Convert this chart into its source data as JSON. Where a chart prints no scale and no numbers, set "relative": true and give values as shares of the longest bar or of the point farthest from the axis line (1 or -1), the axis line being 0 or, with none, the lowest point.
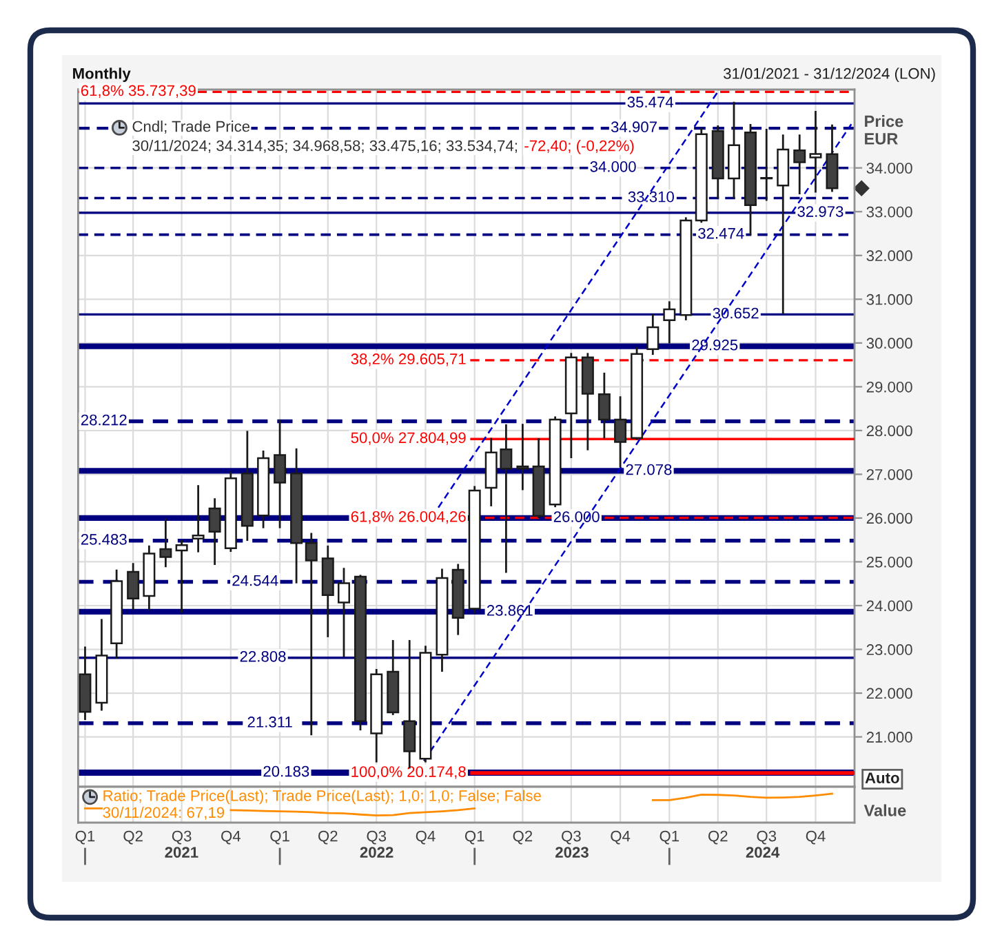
{
  "chart_data": [
    {
      "type": "candlestick",
      "title": "Monthly",
      "subtitle": "31/01/2021 - 31/12/2024 (LON)",
      "ylabel": "Price\nEUR",
      "x": [
        "2021-01",
        "2021-02",
        "2021-03",
        "2021-04",
        "2021-05",
        "2021-06",
        "2021-07",
        "2021-08",
        "2021-09",
        "2021-10",
        "2021-11",
        "2021-12",
        "2022-01",
        "2022-02",
        "2022-03",
        "2022-04",
        "2022-05",
        "2022-06",
        "2022-07",
        "2022-08",
        "2022-09",
        "2022-10",
        "2022-11",
        "2022-12",
        "2023-01",
        "2023-02",
        "2023-03",
        "2023-04",
        "2023-05",
        "2023-06",
        "2023-07",
        "2023-08",
        "2023-09",
        "2023-10",
        "2023-11",
        "2023-12",
        "2024-01",
        "2024-02",
        "2024-03",
        "2024-04",
        "2024-05",
        "2024-06",
        "2024-07",
        "2024-08",
        "2024-09",
        "2024-10",
        "2024-11"
      ],
      "ohlc": [
        [
          22430,
          23040,
          21410,
          21570
        ],
        [
          21780,
          23670,
          21620,
          22860
        ],
        [
          23140,
          24800,
          22810,
          24560
        ],
        [
          24770,
          24950,
          23930,
          24160
        ],
        [
          24220,
          25350,
          23910,
          25190
        ],
        [
          25290,
          25970,
          24900,
          25110
        ],
        [
          25260,
          25470,
          23860,
          25380
        ],
        [
          25530,
          26730,
          25240,
          25600
        ],
        [
          26220,
          26430,
          24950,
          25690
        ],
        [
          25310,
          27040,
          25250,
          26910
        ],
        [
          27020,
          27970,
          25500,
          25820
        ],
        [
          26060,
          27520,
          25790,
          27370
        ],
        [
          27440,
          28230,
          25790,
          26810
        ],
        [
          27020,
          27570,
          24530,
          25430
        ],
        [
          25430,
          25640,
          21060,
          25030
        ],
        [
          25080,
          25350,
          23300,
          24240
        ],
        [
          24070,
          24840,
          22850,
          24510
        ],
        [
          24660,
          24680,
          21170,
          21360
        ],
        [
          21080,
          22530,
          20440,
          22430
        ],
        [
          22490,
          23190,
          21520,
          21560
        ],
        [
          21360,
          23190,
          20300,
          20670
        ],
        [
          20500,
          23060,
          20440,
          22920
        ],
        [
          22880,
          24820,
          22510,
          24630
        ],
        [
          24820,
          24930,
          23350,
          23720
        ],
        [
          23930,
          26710,
          23830,
          26630
        ],
        [
          26690,
          27810,
          26290,
          27500
        ],
        [
          27570,
          28120,
          24770,
          27130
        ],
        [
          27180,
          28130,
          26660,
          27130
        ],
        [
          27180,
          27800,
          26020,
          26050
        ],
        [
          26310,
          28300,
          26270,
          28250
        ],
        [
          28390,
          29750,
          27390,
          29670
        ],
        [
          29670,
          29750,
          27570,
          28840
        ],
        [
          28830,
          29300,
          27840,
          28250
        ],
        [
          28250,
          28760,
          27180,
          27740
        ],
        [
          27830,
          29890,
          27810,
          29750
        ],
        [
          29860,
          30640,
          29750,
          30360
        ],
        [
          30520,
          30930,
          30010,
          30770
        ],
        [
          30640,
          32850,
          30540,
          32800
        ],
        [
          32800,
          34890,
          32770,
          34770
        ],
        [
          34840,
          34950,
          33320,
          33760
        ],
        [
          33760,
          35490,
          33320,
          34520
        ],
        [
          34810,
          34980,
          32480,
          33150
        ],
        [
          33760,
          34870,
          33270,
          33770
        ],
        [
          33600,
          34740,
          30680,
          34420
        ],
        [
          34400,
          34740,
          33420,
          34130
        ],
        [
          34240,
          35280,
          33460,
          34320
        ],
        [
          34314.35,
          34968.58,
          33475.16,
          33534.74
        ]
      ],
      "series": [
        {
          "type": "line",
          "color": "#0000cd",
          "line_style": "dashed",
          "x": [
            "2022-09-28",
            "2024-12-07"
          ],
          "values": [
            20450,
            35000
          ]
        },
        {
          "type": "line",
          "color": "#0000cd",
          "line_style": "dashed",
          "x": [
            "2022-10-25",
            "2024-04-03"
          ],
          "values": [
            26240,
            35780
          ]
        }
      ],
      "ref_lines": [
        {
          "axis": "y",
          "value": 35737.39,
          "label": "61,8% 35.737,39",
          "color": "#ff0000",
          "line_style": "dashed"
        },
        {
          "axis": "y",
          "value": 35474,
          "label": "35.474",
          "color": "#000080",
          "line_style": "solid"
        },
        {
          "axis": "y",
          "value": 34907,
          "label": "34.907",
          "color": "#000080",
          "line_style": "dashed"
        },
        {
          "axis": "y",
          "value": 34000,
          "label": "34.000",
          "color": "#000080",
          "line_style": "dashed"
        },
        {
          "axis": "y",
          "value": 33310,
          "label": "33.310",
          "color": "#000080",
          "line_style": "dashed"
        },
        {
          "axis": "y",
          "value": 32973,
          "label": "32.973",
          "color": "#000080",
          "line_style": "solid"
        },
        {
          "axis": "y",
          "value": 32474,
          "label": "32.474",
          "color": "#000080",
          "line_style": "dashed"
        },
        {
          "axis": "y",
          "value": 30652,
          "label": "30.652",
          "color": "#000080",
          "line_style": "solid"
        },
        {
          "axis": "y",
          "value": 29925,
          "label": "29.925",
          "color": "#000080",
          "line_style": "solid"
        },
        {
          "axis": "y",
          "value": 29605.71,
          "label": "38,2% 29.605,71",
          "color": "#ff0000",
          "line_style": "dashed"
        },
        {
          "axis": "y",
          "value": 28212,
          "label": "28.212",
          "color": "#000080",
          "line_style": "dashed"
        },
        {
          "axis": "y",
          "value": 27804.99,
          "label": "50,0% 27.804,99",
          "color": "#ff0000",
          "line_style": "solid"
        },
        {
          "axis": "y",
          "value": 27078,
          "label": "27.078",
          "color": "#000080",
          "line_style": "solid"
        },
        {
          "axis": "y",
          "value": 26004.26,
          "label": "61,8% 26.004,26",
          "color": "#ff0000",
          "line_style": "dashed"
        },
        {
          "axis": "y",
          "value": 26000,
          "label": "26.000",
          "color": "#000080",
          "line_style": "solid"
        },
        {
          "axis": "y",
          "value": 25483,
          "label": "25.483",
          "color": "#000080",
          "line_style": "dashed"
        },
        {
          "axis": "y",
          "value": 24544,
          "label": "24.544",
          "color": "#000080",
          "line_style": "dashed"
        },
        {
          "axis": "y",
          "value": 23861,
          "label": "23.861",
          "color": "#000080",
          "line_style": "solid"
        },
        {
          "axis": "y",
          "value": 22808,
          "label": "22.808",
          "color": "#000080",
          "line_style": "solid"
        },
        {
          "axis": "y",
          "value": 21311,
          "label": "21.311",
          "color": "#000080",
          "line_style": "dashed"
        },
        {
          "axis": "y",
          "value": 20183,
          "label": "20.183",
          "color": "#000080",
          "line_style": "solid"
        },
        {
          "axis": "y",
          "value": 20174.8,
          "label": "100,0% 20.174,8",
          "color": "#ff0000",
          "line_style": "solid"
        }
      ],
      "annotations": [
        "Cndl; Trade Price",
        "30/11/2024; 34.314,35; 34.968,58; 33.475,16; 33.534,74;",
        "-72,40; (-0,22%)",
        "Auto"
      ],
      "xlim": [
        "2020-12-19",
        "2024-12-13"
      ],
      "ylim": [
        19860,
        35790
      ],
      "xticks": [
        {
          "value": "2021-01",
          "label": null
        },
        {
          "value": "2021-04",
          "label": null
        },
        {
          "value": "2021-07",
          "label": null
        },
        {
          "value": "2021-10",
          "label": null
        },
        {
          "value": "2022-01",
          "label": null
        },
        {
          "value": "2022-04",
          "label": null
        },
        {
          "value": "2022-07",
          "label": null
        },
        {
          "value": "2022-10",
          "label": null
        },
        {
          "value": "2023-01",
          "label": null
        },
        {
          "value": "2023-04",
          "label": null
        },
        {
          "value": "2023-07",
          "label": null
        },
        {
          "value": "2023-10",
          "label": null
        },
        {
          "value": "2024-01",
          "label": null
        },
        {
          "value": "2024-04",
          "label": null
        },
        {
          "value": "2024-07",
          "label": null
        },
        {
          "value": "2024-10",
          "label": null
        }
      ],
      "yticks": [
        {
          "value": 21000,
          "label": "21.000"
        },
        {
          "value": 22000,
          "label": "22.000"
        },
        {
          "value": 23000,
          "label": "23.000"
        },
        {
          "value": 24000,
          "label": "24.000"
        },
        {
          "value": 25000,
          "label": "25.000"
        },
        {
          "value": 26000,
          "label": "26.000"
        },
        {
          "value": 27000,
          "label": "27.000"
        },
        {
          "value": 28000,
          "label": "28.000"
        },
        {
          "value": 29000,
          "label": "29.000"
        },
        {
          "value": 30000,
          "label": "30.000"
        },
        {
          "value": 31000,
          "label": "31.000"
        },
        {
          "value": 32000,
          "label": "32.000"
        },
        {
          "value": 33000,
          "label": "33.000"
        },
        {
          "value": 34000,
          "label": "34.000"
        }
      ],
      "grid": true,
      "tick_labels": "y"
    },
    {
      "type": "line",
      "relative": true,
      "ylabel": "Value",
      "x": [
        "2021-01",
        "2021-02",
        "2021-03",
        "2021-04",
        "2021-05",
        "2021-06",
        "2021-07",
        "2021-08",
        "2021-09",
        "2021-10",
        "2021-11",
        "2021-12",
        "2022-01",
        "2022-02",
        "2022-03",
        "2022-04",
        "2022-05",
        "2022-06",
        "2022-07",
        "2022-08",
        "2022-09",
        "2022-10",
        "2022-11",
        "2022-12",
        "2023-01",
        "2023-02",
        "2023-03",
        "2023-04",
        "2023-05",
        "2023-06",
        "2023-07",
        "2023-08",
        "2023-09",
        "2023-10",
        "2023-11",
        "2023-12",
        "2024-01",
        "2024-02",
        "2024-03",
        "2024-04",
        "2024-05",
        "2024-06",
        "2024-07",
        "2024-08",
        "2024-09",
        "2024-10",
        "2024-11"
      ],
      "series": [
        {
          "color": "#ff8c00",
          "values": [
            0.49,
            0.49,
            null,
            null,
            null,
            null,
            null,
            null,
            null,
            0.43,
            0.42,
            0.4,
            0.39,
            0.38,
            0.36,
            0.33,
            0.32,
            0.28,
            0.25,
            0.26,
            0.33,
            0.36,
            0.39,
            0.43,
            0.49,
            null,
            null,
            null,
            null,
            null,
            null,
            null,
            null,
            null,
            null,
            0.78,
            0.78,
            0.86,
            0.97,
            0.96,
            0.94,
            0.89,
            0.86,
            0.87,
            0.89,
            0.94,
            1
          ]
        }
      ],
      "annotations": [
        "Ratio; Trade Price(Last); Trade Price(Last); 1,0; 1,0; False; False",
        "30/11/2024: 67,19",
        "2021",
        "2022",
        "2023",
        "2024"
      ],
      "xlim": [
        "2020-12-19",
        "2024-12-13"
      ],
      "xticks": [
        {
          "value": "2021-01",
          "label": "Q1"
        },
        {
          "value": "2021-04",
          "label": "Q2"
        },
        {
          "value": "2021-07",
          "label": "Q3"
        },
        {
          "value": "2021-10",
          "label": "Q4"
        },
        {
          "value": "2022-01",
          "label": "Q1"
        },
        {
          "value": "2022-04",
          "label": "Q2"
        },
        {
          "value": "2022-07",
          "label": "Q3"
        },
        {
          "value": "2022-10",
          "label": "Q4"
        },
        {
          "value": "2023-01",
          "label": "Q1"
        },
        {
          "value": "2023-04",
          "label": "Q2"
        },
        {
          "value": "2023-07",
          "label": "Q3"
        },
        {
          "value": "2023-10",
          "label": "Q4"
        },
        {
          "value": "2024-01",
          "label": "Q1"
        },
        {
          "value": "2024-04",
          "label": "Q2"
        },
        {
          "value": "2024-07",
          "label": "Q3"
        },
        {
          "value": "2024-10",
          "label": "Q4"
        }
      ],
      "grid": "x",
      "tick_labels": "x"
    }
  ]
}
